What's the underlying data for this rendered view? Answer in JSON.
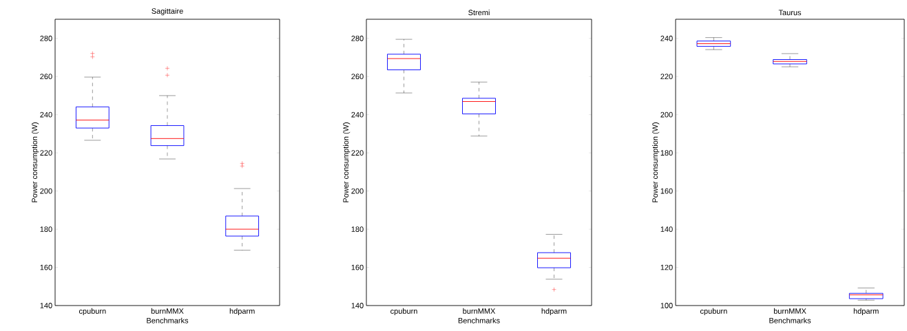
{
  "chart_data": [
    {
      "type": "box",
      "title": "Sagittaire",
      "xlabel": "Benchmarks",
      "ylabel": "Power consumption (W)",
      "categories": [
        "cpuburn",
        "burnMMX",
        "hdparm"
      ],
      "ylim": [
        140,
        290
      ],
      "yticks": [
        140,
        160,
        180,
        200,
        220,
        240,
        260,
        280
      ],
      "series": [
        {
          "color": "#0000ff",
          "boxes": [
            {
              "low": 226.6,
              "q1": 233.0,
              "median": 237.2,
              "q3": 244.1,
              "high": 259.7,
              "outliers": [
                272.1,
                270.3
              ]
            },
            {
              "low": 216.8,
              "q1": 223.8,
              "median": 227.5,
              "q3": 234.3,
              "high": 250.0,
              "outliers": [
                264.3,
                260.7
              ]
            },
            {
              "low": 169.0,
              "q1": 176.4,
              "median": 180.0,
              "q3": 186.9,
              "high": 201.3,
              "outliers": [
                214.5,
                213.1
              ]
            }
          ]
        }
      ]
    },
    {
      "type": "box",
      "title": "Stremi",
      "xlabel": "Benchmarks",
      "ylabel": "Power consumption (W)",
      "categories": [
        "cpuburn",
        "burnMMX",
        "hdparm"
      ],
      "ylim": [
        140,
        290
      ],
      "yticks": [
        140,
        160,
        180,
        200,
        220,
        240,
        260,
        280
      ],
      "series": [
        {
          "color": "#0000ff",
          "boxes": [
            {
              "low": 251.4,
              "q1": 263.5,
              "median": 269.4,
              "q3": 271.7,
              "high": 279.5
            },
            {
              "low": 228.8,
              "q1": 240.4,
              "median": 246.9,
              "q3": 248.6,
              "high": 257.1
            },
            {
              "low": 153.8,
              "q1": 159.8,
              "median": 164.8,
              "q3": 167.7,
              "high": 177.3,
              "outliers": [
                148.4
              ]
            }
          ]
        }
      ]
    },
    {
      "type": "box",
      "title": "Taurus",
      "xlabel": "Benchmarks",
      "ylabel": "Power consumption (W)",
      "categories": [
        "cpuburn",
        "burnMMX",
        "hdparm"
      ],
      "ylim": [
        100,
        250
      ],
      "yticks": [
        100,
        120,
        140,
        160,
        180,
        200,
        220,
        240
      ],
      "series": [
        {
          "color": "#0000ff",
          "boxes": [
            {
              "low": 234.1,
              "q1": 235.8,
              "median": 237.2,
              "q3": 238.6,
              "high": 240.4
            },
            {
              "low": 225.1,
              "q1": 226.6,
              "median": 227.9,
              "q3": 228.9,
              "high": 232.0
            },
            {
              "low": 102.8,
              "q1": 103.6,
              "median": 105.6,
              "q3": 106.4,
              "high": 109.2
            }
          ]
        }
      ]
    }
  ]
}
